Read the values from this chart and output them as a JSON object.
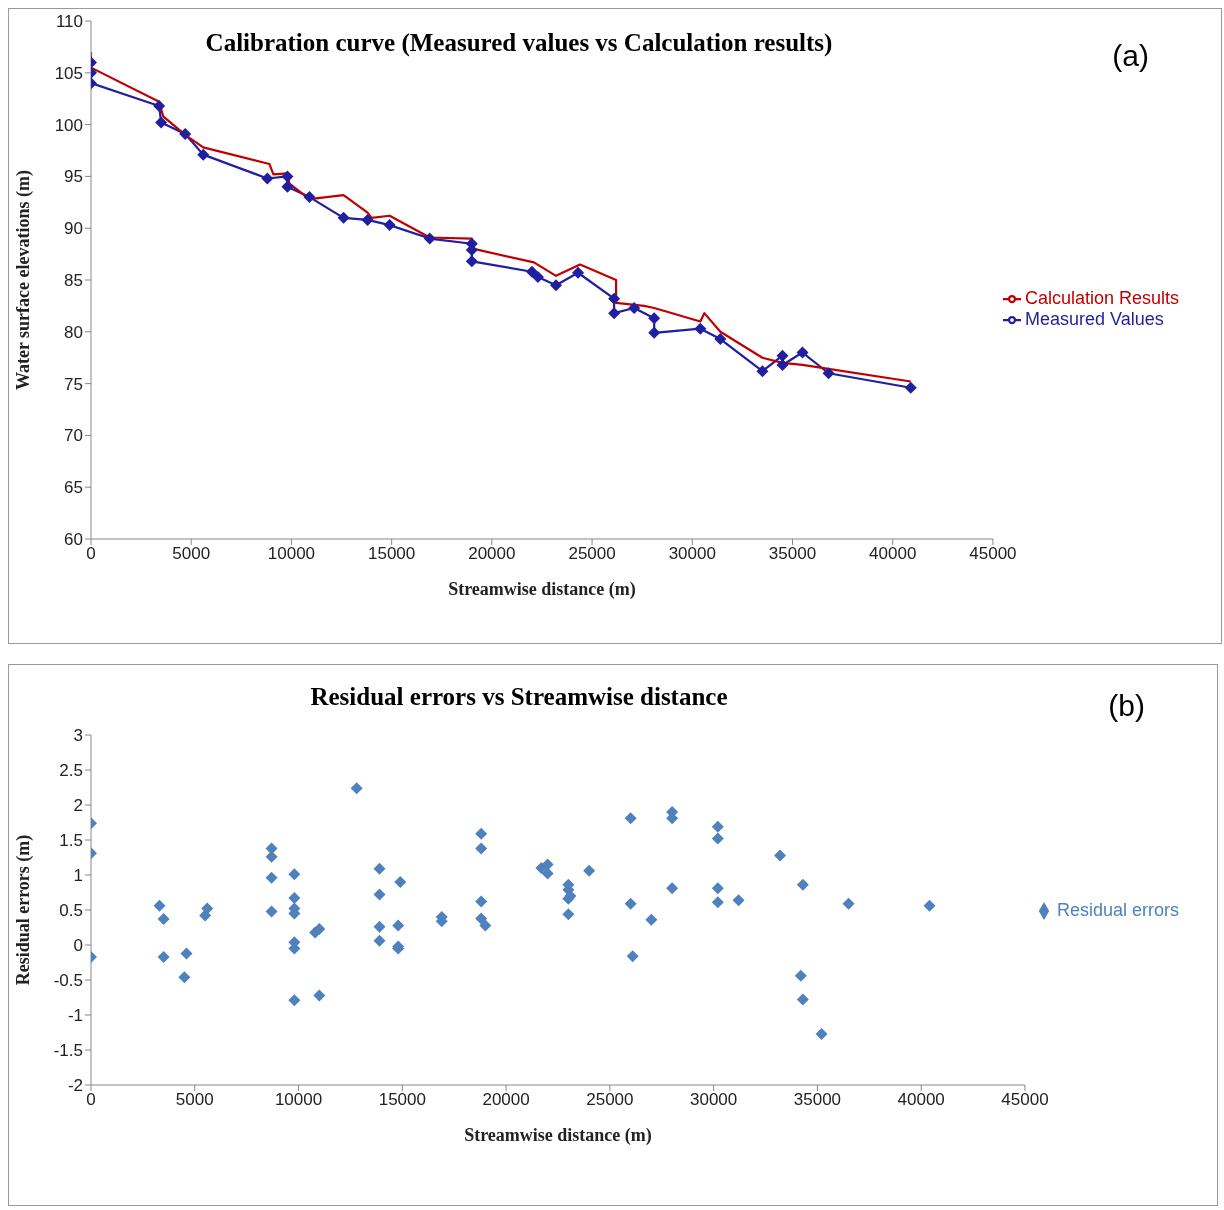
{
  "chart_data": [
    {
      "type": "line",
      "title": "Calibration curve (Measured values vs Calculation results)",
      "xlabel": "Streamwise distance (m)",
      "ylabel": "Water surface elevations (m)",
      "annotations": [
        "(a)"
      ],
      "xlim": [
        0,
        45000
      ],
      "xticks": [
        0,
        5000,
        10000,
        15000,
        20000,
        25000,
        30000,
        35000,
        40000,
        45000
      ],
      "ylim": [
        60,
        110
      ],
      "yticks": [
        60,
        65,
        70,
        75,
        80,
        85,
        90,
        95,
        100,
        105,
        110
      ],
      "grid": false,
      "legend": "right",
      "series": [
        {
          "name": "Measured Values",
          "color": "#1f1fa0",
          "marker": "diamond",
          "x": [
            0,
            0,
            0,
            3400,
            3500,
            4700,
            5600,
            8800,
            9800,
            9800,
            10900,
            12600,
            13800,
            14900,
            16900,
            19000,
            19000,
            19000,
            22000,
            22300,
            23200,
            24300,
            26100,
            26100,
            27100,
            28100,
            28100,
            30400,
            31400,
            33500,
            34500,
            34500,
            35500,
            36800,
            40900
          ],
          "values": [
            106,
            105,
            104,
            101.8,
            100.2,
            99.1,
            97.1,
            94.8,
            95,
            94,
            93,
            91,
            90.8,
            90.3,
            89,
            88.5,
            87.9,
            86.8,
            85.8,
            85.3,
            84.5,
            85.7,
            83.2,
            81.8,
            82.3,
            81.3,
            79.9,
            80.3,
            79.3,
            76.2,
            77.7,
            76.8,
            78,
            76,
            74.6
          ]
        },
        {
          "name": "Calculation Results",
          "color": "#c00000",
          "marker": "none",
          "x": [
            0,
            0,
            3400,
            3600,
            4700,
            5600,
            8900,
            9100,
            9800,
            9900,
            10900,
            12600,
            13800,
            14000,
            14900,
            16900,
            19000,
            19100,
            22100,
            23200,
            24400,
            26200,
            26200,
            27600,
            28100,
            30400,
            30600,
            31400,
            33500,
            34500,
            35500,
            40900
          ],
          "values": [
            107,
            105.5,
            102.2,
            100.8,
            99,
            97.8,
            96.2,
            95.2,
            95.3,
            94.3,
            92.8,
            93.2,
            91.5,
            91,
            91.2,
            89.1,
            89,
            88,
            86.7,
            85.4,
            86.5,
            85,
            82.8,
            82.5,
            82.3,
            81,
            81.8,
            80,
            77.5,
            77,
            76.8,
            75.2
          ]
        }
      ]
    },
    {
      "type": "scatter",
      "title": "Residual errors vs Streamwise distance",
      "xlabel": "Streamwise distance (m)",
      "ylabel": "Residual errors (m)",
      "annotations": [
        "(b)"
      ],
      "xlim": [
        0,
        45000
      ],
      "xticks": [
        0,
        5000,
        10000,
        15000,
        20000,
        25000,
        30000,
        35000,
        40000,
        45000
      ],
      "ylim": [
        -2,
        3
      ],
      "yticks": [
        -2,
        -1.5,
        -1,
        -0.5,
        0,
        0.5,
        1,
        1.5,
        2,
        2.5,
        3
      ],
      "grid": false,
      "legend": "right",
      "marker": "diamond",
      "series": [
        {
          "name": "Residual errors",
          "color": "#4f81bd",
          "x": [
            0,
            0,
            0,
            3300,
            3500,
            3500,
            4600,
            4500,
            5500,
            5600,
            8700,
            8700,
            8700,
            8700,
            9800,
            9800,
            9800,
            9800,
            9800,
            9800,
            9800,
            10800,
            11000,
            11000,
            12800,
            13900,
            13900,
            13900,
            13900,
            14900,
            14800,
            14800,
            14800,
            16900,
            16900,
            18800,
            18800,
            18800,
            18800,
            19000,
            21700,
            22000,
            22000,
            23000,
            23000,
            23000,
            23100,
            23000,
            24000,
            26000,
            26000,
            26100,
            27000,
            28000,
            28000,
            28000,
            30200,
            30200,
            30200,
            30200,
            31200,
            33200,
            34300,
            34200,
            34300,
            35200,
            36500,
            40400
          ],
          "values": [
            1.74,
            1.31,
            -0.17,
            0.56,
            0.37,
            -0.17,
            -0.12,
            -0.46,
            0.42,
            0.52,
            1.38,
            1.26,
            0.96,
            0.48,
            1.01,
            0.67,
            0.52,
            0.45,
            0.04,
            -0.05,
            -0.79,
            0.18,
            0.23,
            -0.72,
            2.24,
            1.09,
            0.72,
            0.26,
            0.06,
            0.9,
            0.28,
            -0.02,
            -0.05,
            0.4,
            0.34,
            1.59,
            1.38,
            0.62,
            0.38,
            0.28,
            1.1,
            1.15,
            1.02,
            0.86,
            0.79,
            0.66,
            0.7,
            0.44,
            1.06,
            1.81,
            0.59,
            -0.16,
            0.36,
            1.9,
            1.81,
            0.81,
            1.69,
            1.52,
            0.81,
            0.61,
            0.64,
            1.28,
            0.86,
            -0.44,
            -0.78,
            -1.27,
            0.59,
            0.56
          ]
        }
      ]
    }
  ]
}
